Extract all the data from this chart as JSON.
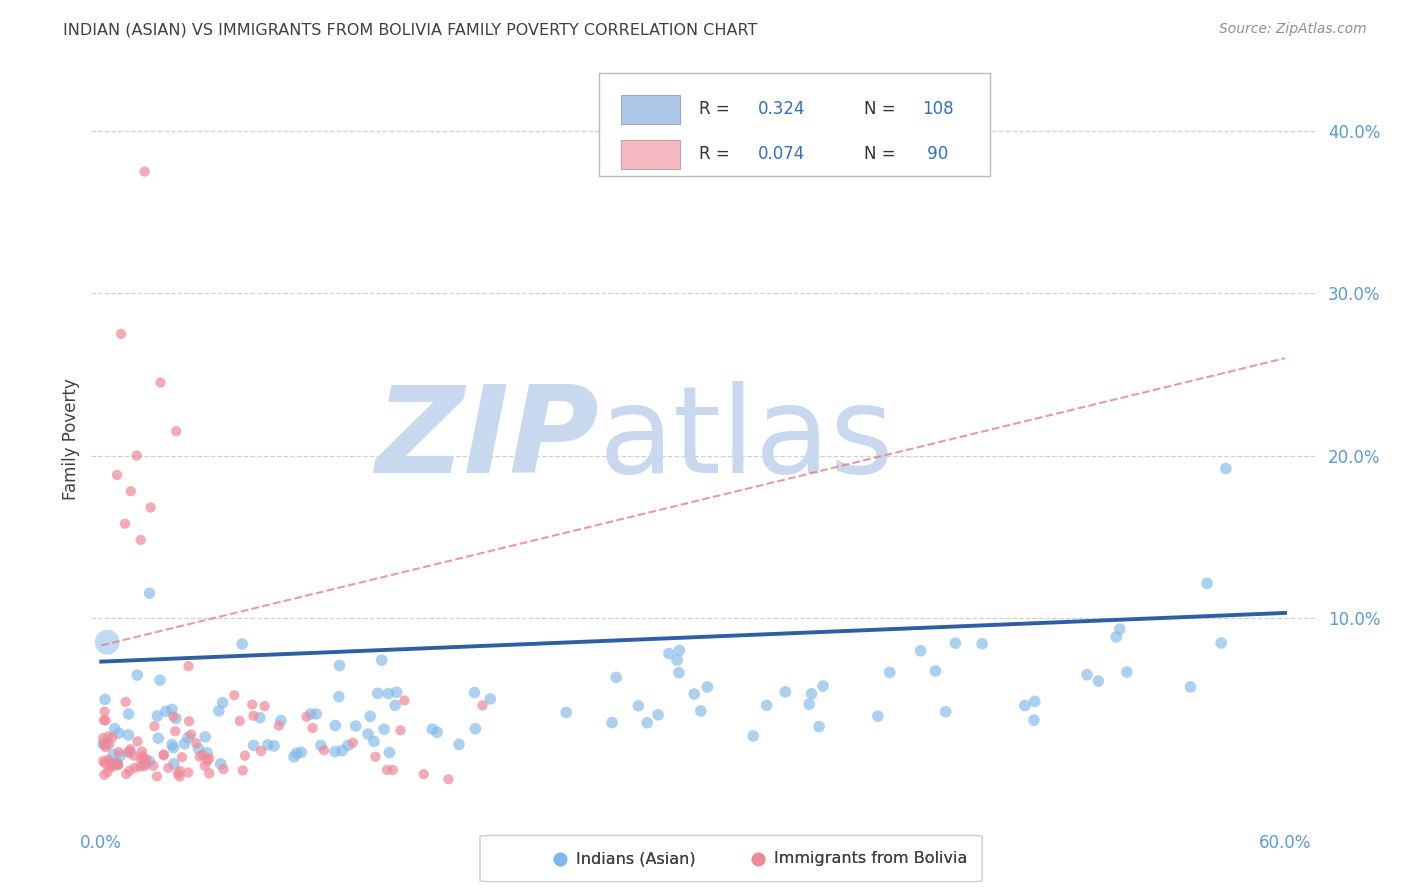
{
  "title": "INDIAN (ASIAN) VS IMMIGRANTS FROM BOLIVIA FAMILY POVERTY CORRELATION CHART",
  "source": "Source: ZipAtlas.com",
  "ylabel": "Family Poverty",
  "xlim": [
    -0.005,
    0.615
  ],
  "ylim": [
    -0.025,
    0.445
  ],
  "xticks": [
    0.0,
    0.1,
    0.2,
    0.3,
    0.4,
    0.5,
    0.6
  ],
  "xticklabels": [
    "0.0%",
    "",
    "",
    "",
    "",
    "",
    "60.0%"
  ],
  "yticks": [
    0.0,
    0.1,
    0.2,
    0.3,
    0.4
  ],
  "yticklabels": [
    "",
    "10.0%",
    "20.0%",
    "30.0%",
    "40.0%"
  ],
  "blue_color": "#7eb8e8",
  "pink_color": "#f08898",
  "blue_line_color": "#2e5fa3",
  "pink_line_color": "#e87878",
  "grid_color": "#cccccc",
  "background_color": "#ffffff",
  "title_color": "#404040",
  "source_color": "#909090",
  "axis_label_color": "#404040",
  "tick_label_color": "#5b9bd5",
  "legend_box_color_blue": "#aec6e8",
  "legend_box_color_pink": "#f4b8c1",
  "legend_value_color": "#3070c0",
  "watermark_zip_color": "#c8d8ee",
  "watermark_atlas_color": "#c8d8ee",
  "scatter_size_blue": 70,
  "scatter_size_pink": 55,
  "scatter_alpha_blue": 0.65,
  "scatter_alpha_pink": 0.7,
  "blue_trend_x0": 0.0,
  "blue_trend_x1": 0.6,
  "blue_trend_y0": 0.073,
  "blue_trend_y1": 0.103,
  "pink_trend_x0": 0.0,
  "pink_trend_x1": 0.6,
  "pink_trend_y0": 0.083,
  "pink_trend_y1": 0.26,
  "seed_blue": 42,
  "seed_pink": 17,
  "n_blue": 108,
  "n_pink": 90
}
